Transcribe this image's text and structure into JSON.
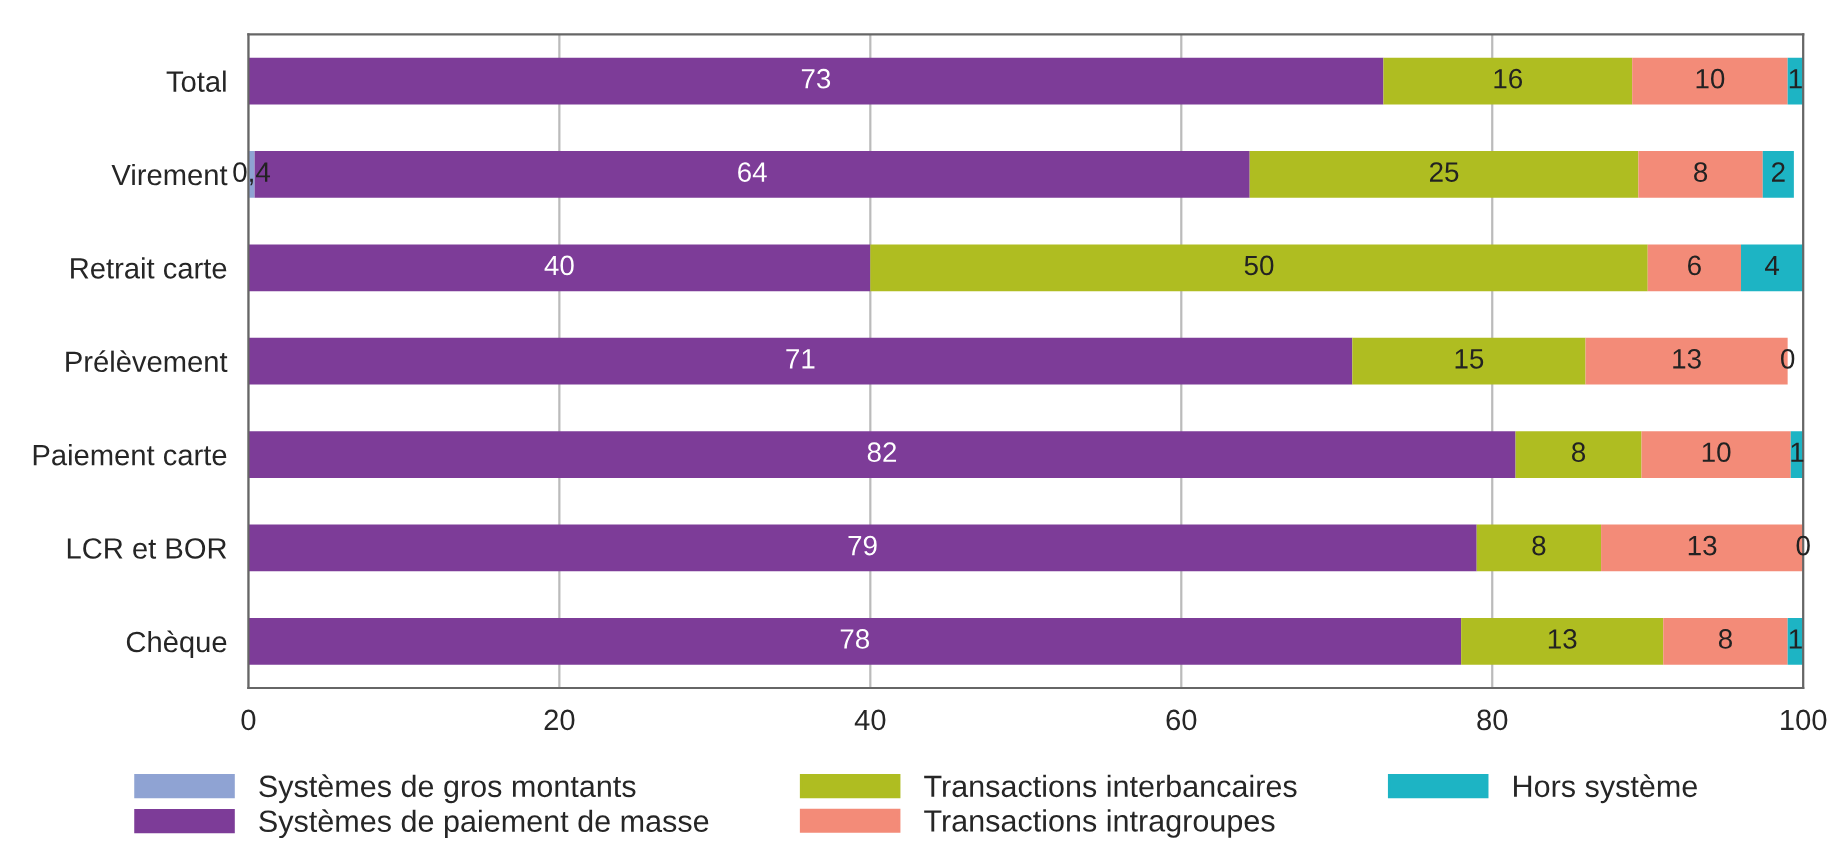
{
  "chart_data": {
    "type": "bar",
    "orientation": "horizontal",
    "stacked": true,
    "categories": [
      "Total",
      "Virement",
      "Retrait carte",
      "Prélèvement",
      "Paiement carte",
      "LCR et BOR",
      "Chèque"
    ],
    "series": [
      {
        "name": "Systèmes de gros montants",
        "color": "#8fa3d3",
        "values": [
          0,
          0.4,
          0,
          0,
          0,
          0,
          0
        ],
        "value_labels": [
          null,
          "0,4",
          null,
          null,
          null,
          null,
          null
        ]
      },
      {
        "name": "Systèmes de paiement de masse",
        "color": "#7d3c98",
        "values": [
          73,
          64,
          40,
          71,
          81.5,
          79,
          78
        ],
        "value_labels": [
          "73",
          "64",
          "40",
          "71",
          "82",
          "79",
          "78"
        ]
      },
      {
        "name": "Transactions interbancaires",
        "color": "#afbd21",
        "values": [
          16,
          25,
          50,
          15,
          8.1,
          8,
          13
        ],
        "value_labels": [
          "16",
          "25",
          "50",
          "15",
          "8",
          "8",
          "13"
        ]
      },
      {
        "name": "Transactions intragroupes",
        "color": "#f38b78",
        "values": [
          10,
          8,
          6,
          13,
          9.6,
          13,
          8
        ],
        "value_labels": [
          "10",
          "8",
          "6",
          "13",
          "10",
          "13",
          "8"
        ]
      },
      {
        "name": "Hors système",
        "color": "#1db4c4",
        "values": [
          1,
          2,
          4,
          0,
          0.8,
          0,
          1
        ],
        "value_labels": [
          "1",
          "2",
          "4",
          "0",
          "1",
          "0",
          "1"
        ]
      }
    ],
    "xlim": [
      0,
      100
    ],
    "xticks": [
      0,
      20,
      40,
      60,
      80,
      100
    ],
    "grid": "x",
    "legend": "bottom"
  }
}
